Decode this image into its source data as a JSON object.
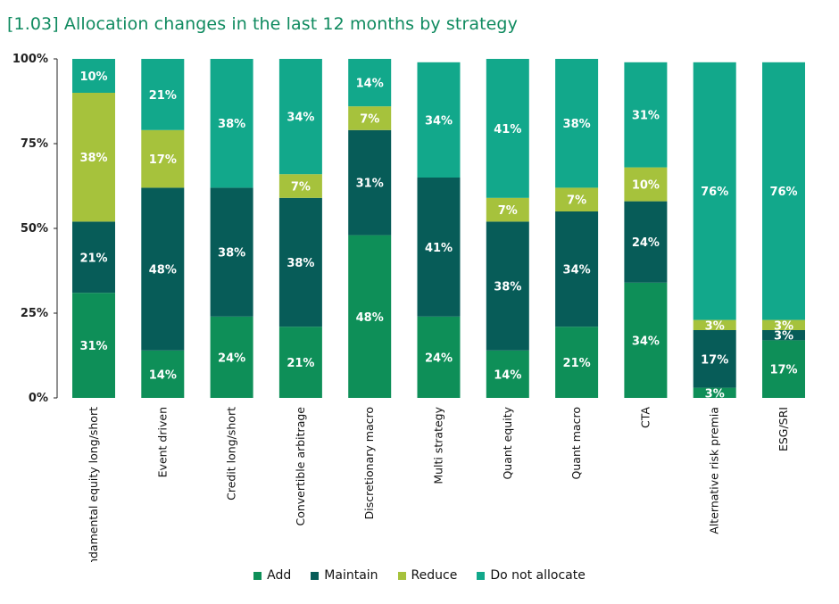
{
  "title": "[1.03] Allocation changes in the last 12 months by strategy",
  "colors": {
    "add": "#0e8f58",
    "maintain": "#075c58",
    "reduce": "#a6c23c",
    "do_not_allocate": "#12a88b",
    "axis": "#222222",
    "title": "#0f8a5f"
  },
  "chart_data": {
    "type": "bar",
    "stacked": true,
    "title": "[1.03] Allocation changes in the last 12 months by strategy",
    "categories": [
      "Fundamental equity long/short",
      "Event driven",
      "Credit long/short",
      "Convertible arbitrage",
      "Discretionary macro",
      "Multi strategy",
      "Quant equity",
      "Quant macro",
      "CTA",
      "Alternative risk premia",
      "ESG/SRI"
    ],
    "series": [
      {
        "name": "Add",
        "color": "#0e8f58",
        "values": [
          31,
          14,
          24,
          21,
          48,
          24,
          14,
          21,
          34,
          3,
          17
        ],
        "labels": [
          "31%",
          "14%",
          "24%",
          "21%",
          "48%",
          "24%",
          "14%",
          "21%",
          "34%",
          "3%",
          "17%"
        ]
      },
      {
        "name": "Maintain",
        "color": "#075c58",
        "values": [
          21,
          48,
          38,
          38,
          31,
          41,
          38,
          34,
          24,
          17,
          3
        ],
        "labels": [
          "21%",
          "48%",
          "38%",
          "38%",
          "31%",
          "41%",
          "38%",
          "34%",
          "24%",
          "17%",
          "3%"
        ]
      },
      {
        "name": "Reduce",
        "color": "#a6c23c",
        "values": [
          38,
          17,
          0,
          7,
          7,
          0,
          7,
          7,
          10,
          3,
          3
        ],
        "labels": [
          "38%",
          "17%",
          "",
          "7%",
          "7%",
          "",
          "7%",
          "7%",
          "10%",
          "3%",
          "3%"
        ]
      },
      {
        "name": "Do not allocate",
        "color": "#12a88b",
        "values": [
          10,
          21,
          38,
          34,
          14,
          34,
          41,
          38,
          31,
          76,
          76
        ],
        "labels": [
          "10%",
          "21%",
          "38%",
          "34%",
          "14%",
          "34%",
          "41%",
          "38%",
          "31%",
          "76%",
          "76%"
        ]
      }
    ],
    "y_ticks": [
      "0%",
      "25%",
      "50%",
      "75%",
      "100%"
    ],
    "ylim": [
      0,
      100
    ],
    "legend_position": "bottom",
    "grid": false
  },
  "legend": [
    {
      "label": "Add",
      "color": "#0e8f58"
    },
    {
      "label": "Maintain",
      "color": "#075c58"
    },
    {
      "label": "Reduce",
      "color": "#a6c23c"
    },
    {
      "label": "Do not allocate",
      "color": "#12a88b"
    }
  ]
}
